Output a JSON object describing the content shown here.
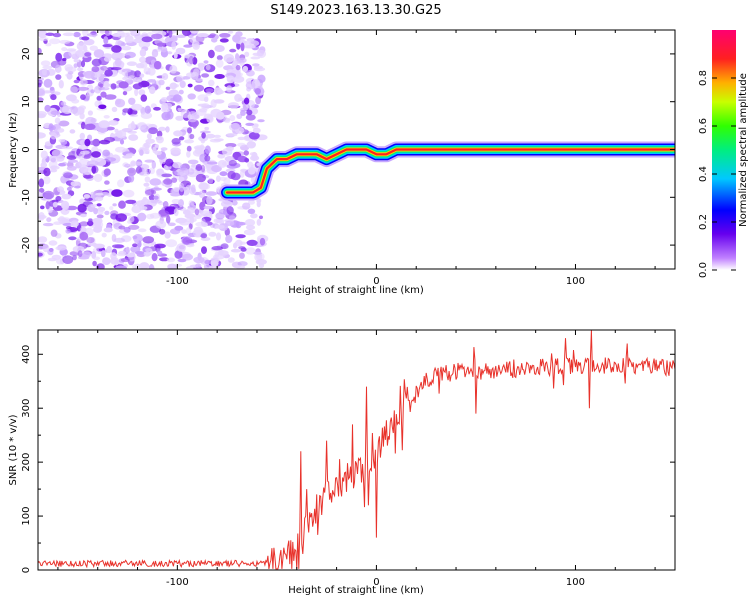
{
  "title": "S149.2023.163.13.30.G25",
  "chart_data": [
    {
      "type": "heatmap",
      "name": "spectrogram",
      "xlabel": "Height of straight line (km)",
      "ylabel": "Frequency (Hz)",
      "xlim": [
        -170,
        150
      ],
      "ylim": [
        -25,
        25
      ],
      "xticks": [
        -100,
        0,
        100
      ],
      "xtick_labels": [
        "-100",
        "0",
        "100"
      ],
      "yticks": [
        -20,
        -10,
        0,
        10,
        20
      ],
      "ytick_labels": [
        "-20",
        "-10",
        "0",
        "10",
        "20"
      ],
      "noise_region_x": [
        -170,
        -57
      ],
      "signal_track": {
        "x": [
          -75,
          -62,
          -58,
          -55,
          -50,
          -45,
          -40,
          -35,
          -30,
          -25,
          -20,
          -15,
          -10,
          -5,
          0,
          5,
          10,
          20,
          40,
          60,
          80,
          100,
          150
        ],
        "freq": [
          -9,
          -9,
          -8,
          -4,
          -2,
          -2,
          -1,
          -1,
          -1,
          -2,
          -1,
          0,
          0,
          0,
          -1,
          -1,
          0,
          0,
          0,
          0,
          0,
          0,
          0
        ]
      },
      "colorbar": {
        "label": "Normalized spectral amplitude",
        "range": [
          0.0,
          1.0
        ],
        "ticks": [
          0.0,
          0.2,
          0.4,
          0.6,
          0.8
        ],
        "tick_labels": [
          "0.0",
          "0.2",
          "0.4",
          "0.6",
          "0.8"
        ]
      }
    },
    {
      "type": "line",
      "name": "snr",
      "xlabel": "Height of straight line (km)",
      "ylabel": "SNR (10 * v/v)",
      "xlim": [
        -170,
        150
      ],
      "ylim": [
        0,
        445
      ],
      "xticks": [
        -100,
        0,
        100
      ],
      "xtick_labels": [
        "-100",
        "0",
        "100"
      ],
      "yticks": [
        0,
        100,
        200,
        300,
        400
      ],
      "ytick_labels": [
        "0",
        "100",
        "200",
        "300",
        "400"
      ],
      "color": "#e8322b",
      "envelope": {
        "x": [
          -170,
          -55,
          -50,
          -45,
          -40,
          -35,
          -30,
          -25,
          -20,
          -15,
          -10,
          -5,
          0,
          5,
          10,
          15,
          20,
          25,
          30,
          40,
          50,
          60,
          80,
          100,
          120,
          150
        ],
        "y": [
          12,
          12,
          15,
          25,
          50,
          80,
          115,
          140,
          150,
          170,
          180,
          190,
          215,
          250,
          290,
          315,
          330,
          350,
          360,
          368,
          372,
          370,
          375,
          378,
          380,
          375
        ]
      },
      "spikes": [
        {
          "x": -38,
          "y": 220
        },
        {
          "x": -35,
          "y": 150
        },
        {
          "x": -25,
          "y": 240
        },
        {
          "x": -12,
          "y": 270
        },
        {
          "x": -5,
          "y": 340
        },
        {
          "x": 0,
          "y": 60
        },
        {
          "x": 50,
          "y": 290
        },
        {
          "x": 95,
          "y": 430
        },
        {
          "x": 108,
          "y": 445
        },
        {
          "x": 107,
          "y": 300
        },
        {
          "x": 126,
          "y": 420
        }
      ]
    }
  ]
}
